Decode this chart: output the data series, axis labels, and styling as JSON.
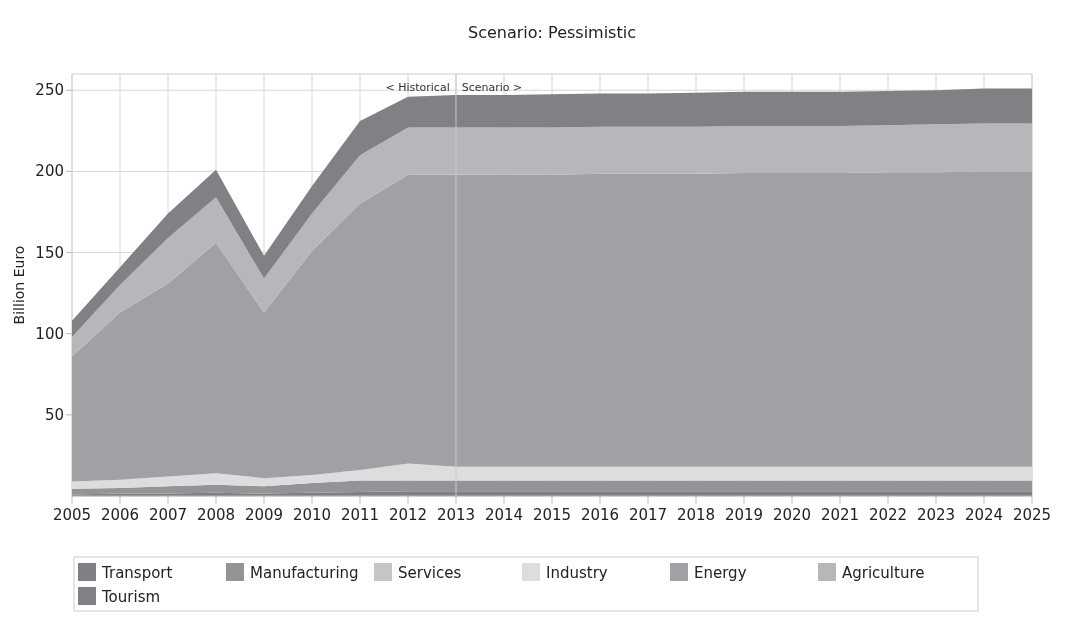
{
  "chart_data": {
    "type": "area",
    "stacked": true,
    "title": "Scenario: Pessimistic",
    "ylabel": "Billion Euro",
    "x": [
      2005,
      2006,
      2007,
      2008,
      2009,
      2010,
      2011,
      2012,
      2013,
      2014,
      2015,
      2016,
      2017,
      2018,
      2019,
      2020,
      2021,
      2022,
      2023,
      2024,
      2025
    ],
    "xlim": [
      2005,
      2025
    ],
    "xticks": [
      2005,
      2006,
      2007,
      2008,
      2009,
      2010,
      2011,
      2012,
      2013,
      2014,
      2015,
      2016,
      2017,
      2018,
      2019,
      2020,
      2021,
      2022,
      2023,
      2024,
      2025
    ],
    "ylim": [
      0,
      260
    ],
    "yticks": [
      50,
      100,
      150,
      200,
      250
    ],
    "grid": true,
    "legend": "bottom",
    "series": [
      {
        "name": "Transport",
        "color": "#7f8084",
        "values": [
          1,
          1.5,
          1.5,
          2,
          1.5,
          2,
          2.5,
          3,
          3,
          3,
          3,
          3,
          3,
          3,
          3,
          3,
          3,
          3,
          3,
          3,
          3
        ]
      },
      {
        "name": "Manufacturing",
        "color": "#939497",
        "values": [
          3.5,
          3.5,
          4.5,
          5,
          4.5,
          6,
          7,
          6.5,
          6.5,
          6.5,
          6.5,
          6.5,
          6.5,
          6.5,
          6.5,
          6.5,
          6.5,
          6.5,
          6.5,
          6.5,
          6.5
        ]
      },
      {
        "name": "Services",
        "color": "#c4c5c8",
        "values": [
          null,
          null,
          null,
          null,
          null,
          null,
          null,
          null,
          null,
          null,
          null,
          null,
          null,
          null,
          null,
          null,
          null,
          null,
          null,
          null,
          null
        ]
      },
      {
        "name": "Industry",
        "color": "#dcdddf",
        "values": [
          4.5,
          5,
          6,
          7,
          5,
          5,
          6.5,
          10.5,
          8.5,
          8.5,
          8.5,
          8.5,
          8.5,
          8.5,
          8.5,
          8.5,
          8.5,
          8.5,
          8.5,
          8.5,
          8.5
        ]
      },
      {
        "name": "Energy",
        "color": "#a0a1a5",
        "values": [
          77,
          103,
          119,
          142,
          102,
          138,
          164,
          178,
          180,
          180,
          180,
          180.5,
          180.5,
          180.5,
          181,
          181,
          181,
          181.5,
          181.5,
          182,
          182
        ]
      },
      {
        "name": "Agriculture",
        "color": "#b6b7ba",
        "values": [
          12,
          17,
          28,
          28,
          21,
          23,
          30,
          29,
          29,
          29,
          29,
          29,
          29,
          29,
          29,
          29,
          29,
          29,
          29.5,
          29.5,
          29.5
        ]
      },
      {
        "name": "Tourism",
        "color": "#808185",
        "values": [
          10,
          11,
          15,
          17,
          14,
          17,
          21,
          19,
          20,
          20,
          20.5,
          20.5,
          20.5,
          21,
          21,
          21,
          21,
          21,
          21,
          21.5,
          21.5
        ]
      }
    ],
    "ref_lines": [
      {
        "axis": "x",
        "value": 2013,
        "color": "#c8c8c8"
      }
    ],
    "annotations": [
      {
        "text": "< Historical",
        "x": 2012.2,
        "y": 248
      },
      {
        "text": "Scenario >",
        "x": 2013.75,
        "y": 248
      }
    ]
  }
}
